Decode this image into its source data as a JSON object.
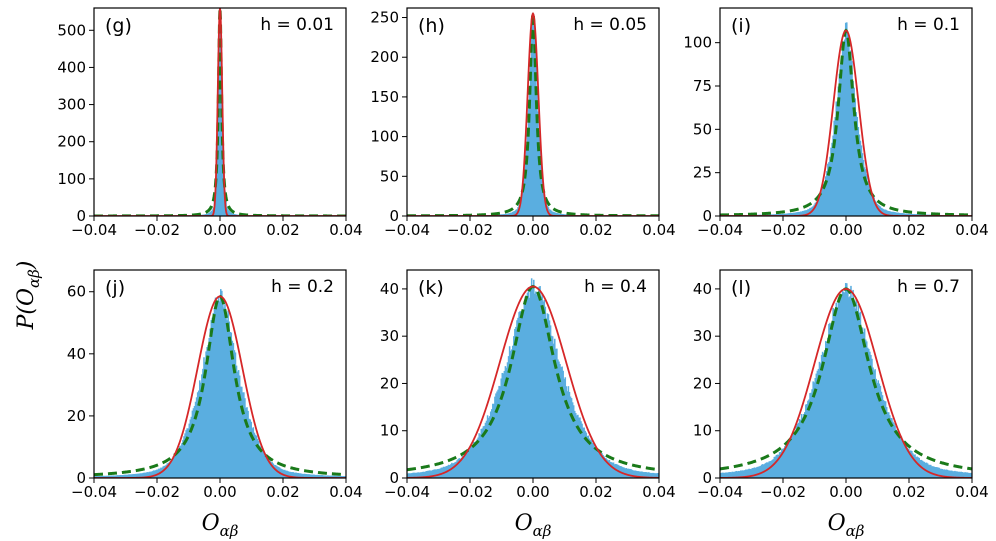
{
  "chart_data": {
    "type": "histogram-grid",
    "ylabel": "P(O_αβ)",
    "xlabel": "O_αβ",
    "colors": {
      "histogram": "#5aaee0",
      "gaussian_fit": "#d62728",
      "dashed_fit": "#1a7a1a"
    },
    "panels": [
      {
        "label": "(g)",
        "h_text": "h = 0.01",
        "xlim": [
          -0.04,
          0.04
        ],
        "ylim": [
          0,
          560
        ],
        "xticks": [
          "−0.04",
          "−0.02",
          "0.00",
          "0.02",
          "0.04"
        ],
        "yticks": [
          0,
          100,
          200,
          300,
          400,
          500
        ],
        "peak": 560,
        "gauss_sigma": 0.0007,
        "heavy_gamma": 0.0006,
        "sample_seed": 11
      },
      {
        "label": "(h)",
        "h_text": "h = 0.05",
        "xlim": [
          -0.04,
          0.04
        ],
        "ylim": [
          0,
          262
        ],
        "xticks": [
          "−0.04",
          "−0.02",
          "0.00",
          "0.02",
          "0.04"
        ],
        "yticks": [
          0,
          50,
          100,
          150,
          200,
          250
        ],
        "peak": 255,
        "gauss_sigma": 0.0017,
        "heavy_gamma": 0.00125,
        "sample_seed": 12
      },
      {
        "label": "(i)",
        "h_text": "h = 0.1",
        "xlim": [
          -0.04,
          0.04
        ],
        "ylim": [
          0,
          120
        ],
        "xticks": [
          "−0.04",
          "−0.02",
          "0.00",
          "0.02",
          "0.04"
        ],
        "yticks": [
          0,
          25,
          50,
          75,
          100
        ],
        "peak": 107,
        "gauss_sigma": 0.004,
        "heavy_gamma": 0.003,
        "sample_seed": 13
      },
      {
        "label": "(j)",
        "h_text": "h = 0.2",
        "xlim": [
          -0.04,
          0.04
        ],
        "ylim": [
          0,
          67
        ],
        "xticks": [
          "−0.04",
          "−0.02",
          "0.00",
          "0.02",
          "0.04"
        ],
        "yticks": [
          0,
          20,
          40,
          60
        ],
        "peak": 58.5,
        "gauss_sigma": 0.0071,
        "heavy_gamma": 0.0055,
        "sample_seed": 14
      },
      {
        "label": "(k)",
        "h_text": "h = 0.4",
        "xlim": [
          -0.04,
          0.04
        ],
        "ylim": [
          0,
          44
        ],
        "xticks": [
          "−0.04",
          "−0.02",
          "0.00",
          "0.02",
          "0.04"
        ],
        "yticks": [
          0,
          10,
          20,
          30,
          40
        ],
        "peak": 40.5,
        "gauss_sigma": 0.0105,
        "heavy_gamma": 0.0085,
        "sample_seed": 15
      },
      {
        "label": "(l)",
        "h_text": "h = 0.7",
        "xlim": [
          -0.04,
          0.04
        ],
        "ylim": [
          0,
          44
        ],
        "xticks": [
          "−0.04",
          "−0.02",
          "0.00",
          "0.02",
          "0.04"
        ],
        "yticks": [
          0,
          10,
          20,
          30,
          40
        ],
        "peak": 40,
        "gauss_sigma": 0.01,
        "heavy_gamma": 0.009,
        "sample_seed": 16
      }
    ]
  }
}
